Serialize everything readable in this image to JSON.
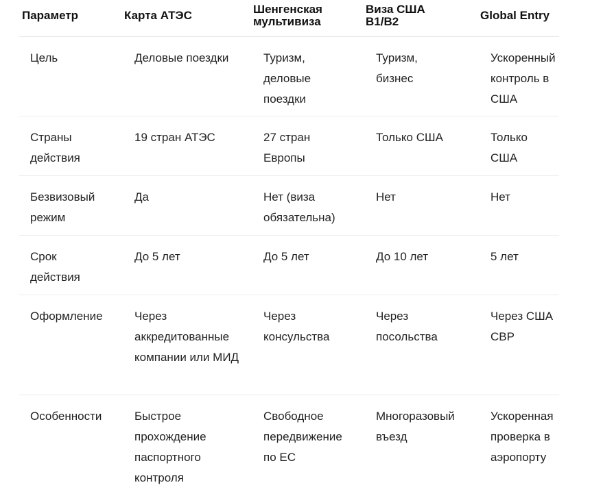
{
  "table": {
    "headers": [
      "Параметр",
      "Карта АТЭС",
      "Шенгенская мультивиза",
      "Виза США B1/B2",
      "Global Entry"
    ],
    "rows": [
      [
        "Цель",
        "Деловые поездки",
        "Туризм, деловые поездки",
        "Туризм, бизнес",
        "Ускоренный контроль в США"
      ],
      [
        "Страны действия",
        "19 стран АТЭС",
        "27 стран Европы",
        "Только США",
        "Только США"
      ],
      [
        "Безвизовый режим",
        "Да",
        "Нет (виза обязательна)",
        "Нет",
        "Нет"
      ],
      [
        "Срок действия",
        "До 5 лет",
        "До 5 лет",
        "До 10 лет",
        "5 лет"
      ],
      [
        "Оформление",
        "Через аккредитованные компании или МИД",
        "Через консульства",
        "Через посольства",
        "Через США СВР"
      ],
      [
        "Особенности",
        "Быстрое прохождение паспортного контроля",
        "Свободное передвижение по ЕС",
        "Многоразовый въезд",
        "Ускоренная проверка в аэропорту"
      ]
    ]
  }
}
